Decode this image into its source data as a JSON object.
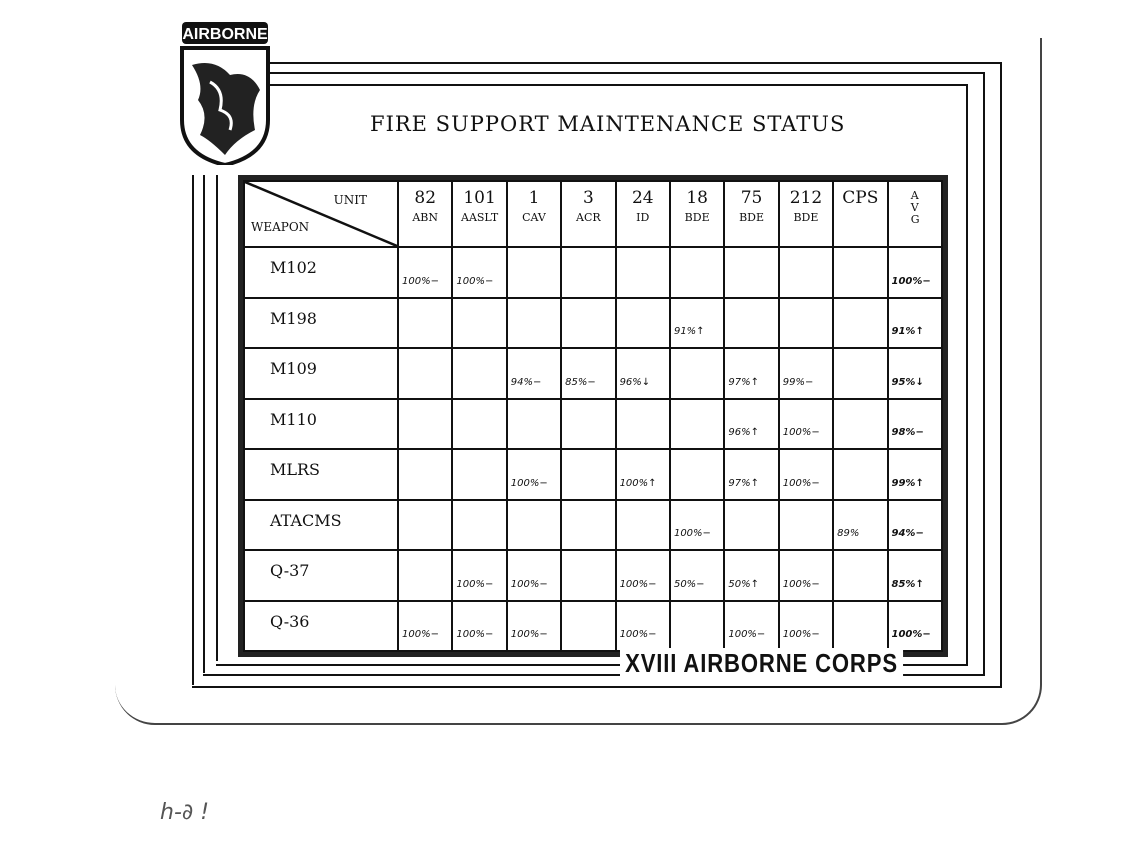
{
  "title": "FIRE SUPPORT MAINTENANCE STATUS",
  "logo_text": "AIRBORNE",
  "footer": "XVIII AIRBORNE CORPS",
  "header": {
    "unit_label": "UNIT",
    "weapon_label": "WEAPON"
  },
  "columns": [
    {
      "top": "82",
      "bottom": "ABN"
    },
    {
      "top": "101",
      "bottom": "AASLT"
    },
    {
      "top": "1",
      "bottom": "CAV"
    },
    {
      "top": "3",
      "bottom": "ACR"
    },
    {
      "top": "24",
      "bottom": "ID"
    },
    {
      "top": "18",
      "bottom": "BDE"
    },
    {
      "top": "75",
      "bottom": "BDE"
    },
    {
      "top": "212",
      "bottom": "BDE"
    },
    {
      "top": "CPS",
      "bottom": ""
    },
    {
      "top": "A V G",
      "bottom": ""
    }
  ],
  "rows": [
    {
      "weapon": "M102",
      "values": [
        "100%−",
        "100%−",
        "",
        "",
        "",
        "",
        "",
        "",
        "",
        "100%−"
      ]
    },
    {
      "weapon": "M198",
      "values": [
        "",
        "",
        "",
        "",
        "",
        "91%↑",
        "",
        "",
        "",
        "91%↑"
      ]
    },
    {
      "weapon": "M109",
      "values": [
        "",
        "",
        "94%−",
        "85%−",
        "96%↓",
        "",
        "97%↑",
        "99%−",
        "",
        "95%↓"
      ]
    },
    {
      "weapon": "M110",
      "values": [
        "",
        "",
        "",
        "",
        "",
        "",
        "96%↑",
        "100%−",
        "",
        "98%−"
      ]
    },
    {
      "weapon": "MLRS",
      "values": [
        "",
        "",
        "100%−",
        "",
        "100%↑",
        "",
        "97%↑",
        "100%−",
        "",
        "99%↑"
      ]
    },
    {
      "weapon": "ATACMS",
      "values": [
        "",
        "",
        "",
        "",
        "",
        "100%−",
        "",
        "",
        "89%",
        "94%−"
      ]
    },
    {
      "weapon": "Q-37",
      "values": [
        "",
        "100%−",
        "100%−",
        "",
        "100%−",
        "50%−",
        "50%↑",
        "100%−",
        "",
        "85%↑"
      ]
    },
    {
      "weapon": "Q-36",
      "values": [
        "100%−",
        "100%−",
        "100%−",
        "",
        "100%−",
        "",
        "100%−",
        "100%−",
        "",
        "100%−"
      ]
    }
  ],
  "handwritten_note": "h-∂   !"
}
